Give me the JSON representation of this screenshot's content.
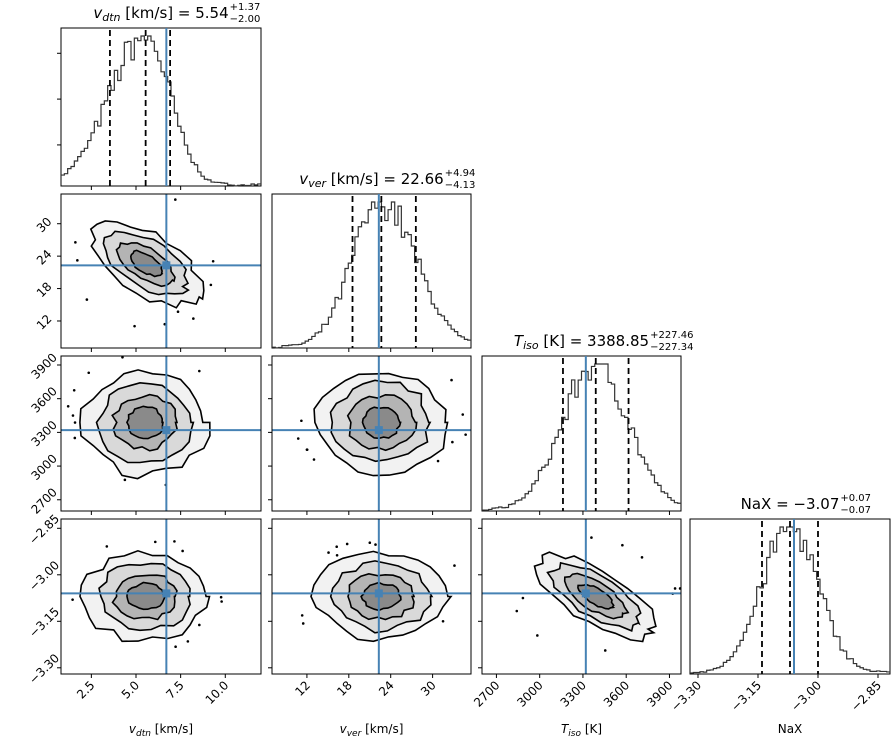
{
  "chart_data": {
    "type": "corner",
    "parameters": [
      {
        "key": "vdtn",
        "symbol": "v",
        "sub": "dtn",
        "unit": "[km/s]",
        "xlabel_unit": "[km/s]",
        "median": "5.54",
        "plus": "+1.37",
        "minus": "−2.00",
        "range": [
          0.8,
          12.0
        ],
        "ticks": [
          2.5,
          5.0,
          7.5,
          10.0
        ],
        "tick_labels": [
          "2.5",
          "5.0",
          "7.5",
          "10.0"
        ],
        "quantiles": [
          3.54,
          5.54,
          6.91
        ],
        "truth": 6.7
      },
      {
        "key": "vver",
        "symbol": "v",
        "sub": "ver",
        "unit": "[km/s]",
        "xlabel_unit": "[km/s]",
        "median": "22.66",
        "plus": "+4.94",
        "minus": "−4.13",
        "range": [
          7.0,
          35.5
        ],
        "ticks": [
          12,
          18,
          24,
          30
        ],
        "tick_labels": [
          "12",
          "18",
          "24",
          "30"
        ],
        "quantiles": [
          18.53,
          22.66,
          27.6
        ],
        "truth": 22.3
      },
      {
        "key": "Tiso",
        "symbol": "T",
        "sub": "iso",
        "unit": "[K]",
        "xlabel_unit": "[K]",
        "median": "3388.85",
        "plus": "+227.46",
        "minus": "−227.34",
        "range": [
          2600,
          3980
        ],
        "ticks": [
          2700,
          3000,
          3300,
          3600,
          3900
        ],
        "tick_labels": [
          "2700",
          "3000",
          "3300",
          "3600",
          "3900"
        ],
        "quantiles": [
          3161.5,
          3388.85,
          3616.3
        ],
        "truth": 3320
      },
      {
        "key": "NaX",
        "symbol": "NaX",
        "sub": "",
        "unit": "",
        "xlabel_unit": "",
        "median": "−3.07",
        "plus": "+0.07",
        "minus": "−0.07",
        "range": [
          -3.32,
          -2.82
        ],
        "ticks": [
          -3.3,
          -3.15,
          -3.0,
          -2.85
        ],
        "tick_labels": [
          "−3.30",
          "−3.15",
          "−3.00",
          "−2.85"
        ],
        "quantiles": [
          -3.14,
          -3.07,
          -3.0
        ],
        "truth": -3.06
      }
    ],
    "truth_color": "#4682b4",
    "hist_color": "#333333"
  }
}
